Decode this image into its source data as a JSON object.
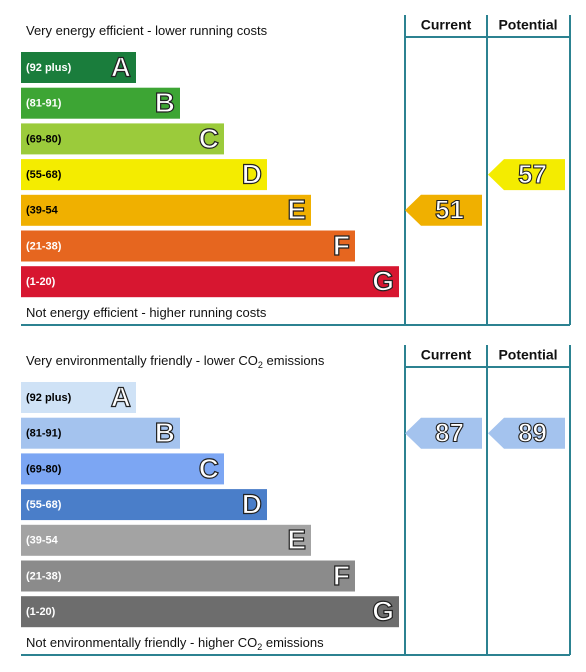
{
  "panels": [
    {
      "headers": {
        "current": "Current",
        "potential": "Potential"
      },
      "top": {
        "text": "Very energy efficient - lower running costs"
      },
      "bottom": {
        "text": "Not energy efficient - higher running costs"
      },
      "bands": [
        {
          "range": "(92 plus)",
          "letter": "A",
          "color": "#1a7d3c",
          "text_color": "#ffffff"
        },
        {
          "range": "(81-91)",
          "letter": "B",
          "color": "#3da534",
          "text_color": "#ffffff"
        },
        {
          "range": "(69-80)",
          "letter": "C",
          "color": "#9bcb3b",
          "text_color": "#000000"
        },
        {
          "range": "(55-68)",
          "letter": "D",
          "color": "#f4ec00",
          "text_color": "#000000"
        },
        {
          "range": "(39-54",
          "letter": "E",
          "color": "#f0b000",
          "text_color": "#000000"
        },
        {
          "range": "(21-38)",
          "letter": "F",
          "color": "#e6661f",
          "text_color": "#ffffff"
        },
        {
          "range": "(1-20)",
          "letter": "G",
          "color": "#d71630",
          "text_color": "#ffffff"
        }
      ],
      "current": 51,
      "potential": 57
    },
    {
      "headers": {
        "current": "Current",
        "potential": "Potential"
      },
      "top": {
        "text": "Very environmentally friendly - lower CO",
        "sub": "2",
        "tail": " emissions"
      },
      "bottom": {
        "text": "Not environmentally friendly - higher CO",
        "sub": "2",
        "tail": " emissions"
      },
      "bands": [
        {
          "range": "(92 plus)",
          "letter": "A",
          "color": "#cfe2f6",
          "text_color": "#000000"
        },
        {
          "range": "(81-91)",
          "letter": "B",
          "color": "#a4c3ee",
          "text_color": "#000000"
        },
        {
          "range": "(69-80)",
          "letter": "C",
          "color": "#7ca6f3",
          "text_color": "#000000"
        },
        {
          "range": "(55-68)",
          "letter": "D",
          "color": "#4a7ec9",
          "text_color": "#ffffff"
        },
        {
          "range": "(39-54",
          "letter": "E",
          "color": "#a3a3a3",
          "text_color": "#ffffff"
        },
        {
          "range": "(21-38)",
          "letter": "F",
          "color": "#8b8b8b",
          "text_color": "#ffffff"
        },
        {
          "range": "(1-20)",
          "letter": "G",
          "color": "#6d6d6d",
          "text_color": "#ffffff"
        }
      ],
      "current": 87,
      "potential": 89
    }
  ]
}
